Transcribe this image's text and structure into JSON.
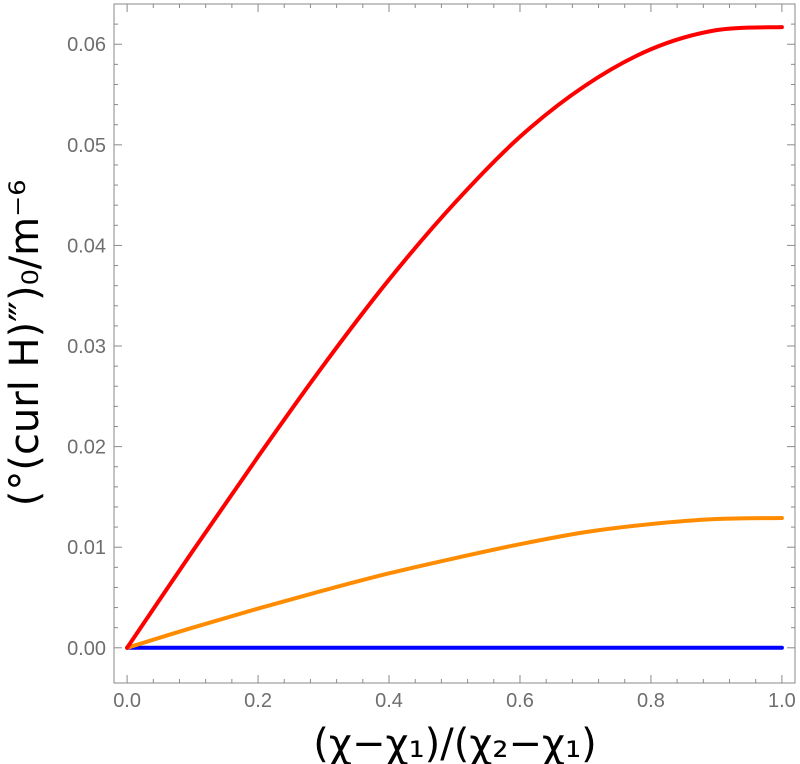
{
  "chart_data": {
    "type": "line",
    "xlabel": "(χ−χ₁)/(χ₂−χ₁)",
    "ylabel": "(°(curl H)‴)₀/m⁻⁶",
    "xlim": [
      -0.02,
      1.02
    ],
    "ylim": [
      -0.0035,
      0.064
    ],
    "x_ticks": [
      {
        "value": 0.0,
        "label": "0.0"
      },
      {
        "value": 0.2,
        "label": "0.2"
      },
      {
        "value": 0.4,
        "label": "0.4"
      },
      {
        "value": 0.6,
        "label": "0.6"
      },
      {
        "value": 0.8,
        "label": "0.8"
      },
      {
        "value": 1.0,
        "label": "1.0"
      }
    ],
    "y_ticks": [
      {
        "value": 0.0,
        "label": "0.00"
      },
      {
        "value": 0.01,
        "label": "0.01"
      },
      {
        "value": 0.02,
        "label": "0.02"
      },
      {
        "value": 0.03,
        "label": "0.03"
      },
      {
        "value": 0.04,
        "label": "0.04"
      },
      {
        "value": 0.05,
        "label": "0.05"
      },
      {
        "value": 0.06,
        "label": "0.06"
      }
    ],
    "grid": false,
    "frame": true,
    "series": [
      {
        "color": "#ff0000",
        "x": [
          0.0,
          0.1,
          0.2,
          0.3,
          0.4,
          0.5,
          0.6,
          0.7,
          0.8,
          0.9,
          1.0
        ],
        "y": [
          0.0,
          0.0096,
          0.019,
          0.0281,
          0.0366,
          0.0442,
          0.0508,
          0.0559,
          0.0595,
          0.0614,
          0.0617
        ]
      },
      {
        "color": "#ff8c00",
        "x": [
          0.0,
          0.1,
          0.2,
          0.3,
          0.4,
          0.5,
          0.6,
          0.7,
          0.8,
          0.9,
          1.0
        ],
        "y": [
          0.0,
          0.002,
          0.0039,
          0.0057,
          0.0074,
          0.0089,
          0.0103,
          0.0115,
          0.0123,
          0.0128,
          0.0129
        ]
      },
      {
        "color": "#0000ff",
        "x": [
          0.0,
          0.1,
          0.2,
          0.3,
          0.4,
          0.5,
          0.6,
          0.7,
          0.8,
          0.9,
          1.0
        ],
        "y": [
          0,
          0,
          0,
          0,
          0,
          0,
          0,
          0,
          0,
          0,
          0
        ]
      }
    ]
  }
}
